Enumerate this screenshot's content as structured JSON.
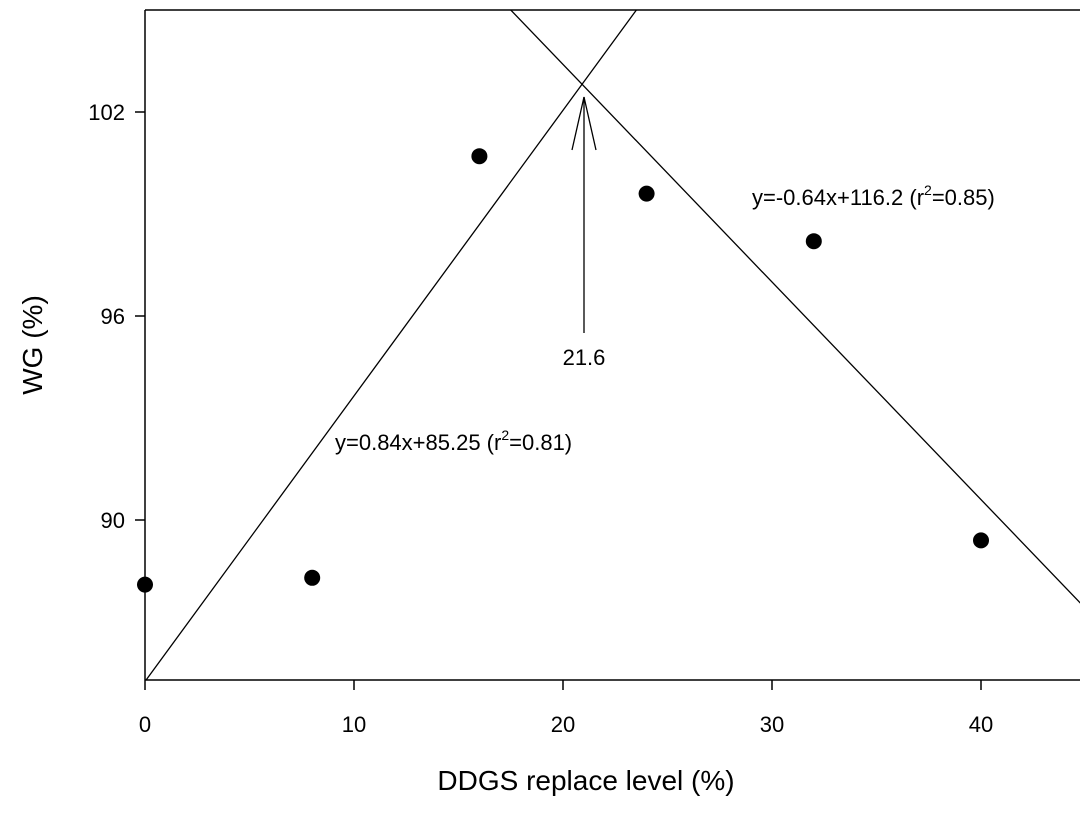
{
  "chart_data": {
    "type": "scatter",
    "xlabel": "DDGS replace level (%)",
    "ylabel": "WG (%)",
    "xlim": [
      0,
      45
    ],
    "ylim": [
      85,
      105
    ],
    "x_ticks": [
      0,
      10,
      20,
      30,
      40
    ],
    "y_ticks": [
      90,
      96,
      102
    ],
    "grid": false,
    "points": [
      {
        "x": 0,
        "y": 88.1
      },
      {
        "x": 8,
        "y": 88.3
      },
      {
        "x": 16,
        "y": 100.7
      },
      {
        "x": 24,
        "y": 99.6
      },
      {
        "x": 32,
        "y": 98.2
      },
      {
        "x": 40,
        "y": 89.4
      }
    ],
    "lines": [
      {
        "slope": 0.84,
        "intercept": 85.25,
        "x_range": [
          0,
          25
        ]
      },
      {
        "slope": -0.64,
        "intercept": 116.2,
        "x_range": [
          17,
          45
        ]
      }
    ],
    "annotations": {
      "eq1_main": "y=0.84x+85.25 (r",
      "eq1_sup": "2",
      "eq1_tail": "=0.81)",
      "eq2_main": "y=-0.64x+116.2 (r",
      "eq2_sup": "2",
      "eq2_tail": "=0.85)",
      "breakpoint_label": "21.6",
      "breakpoint_x": 21.6
    }
  }
}
